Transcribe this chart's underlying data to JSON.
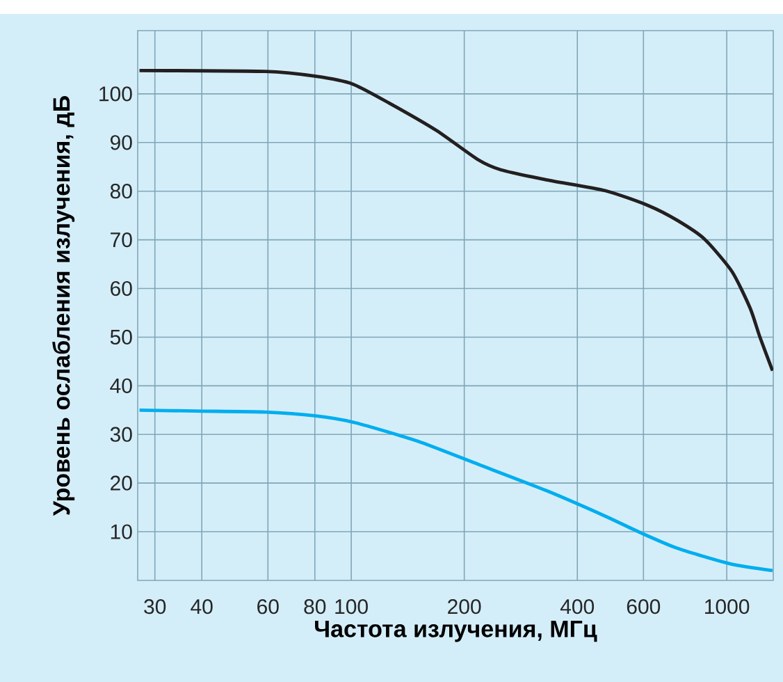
{
  "chart_data": {
    "type": "line",
    "xlabel": "Частота излучения, МГц",
    "ylabel": "Уровень ослабления излучения, дБ",
    "log": "x",
    "grid": true,
    "xlim": [
      27,
      1330
    ],
    "ylim": [
      0,
      113
    ],
    "xticks": [
      30,
      40,
      60,
      80,
      100,
      200,
      400,
      600,
      1000
    ],
    "yticks": [
      10,
      20,
      30,
      40,
      50,
      60,
      70,
      80,
      90,
      100
    ],
    "series": [
      {
        "color": "#231f20",
        "x": [
          27.3,
          59,
          80.6,
          101,
          126.9,
          168.4,
          217.3,
          250.2,
          332.3,
          474.8,
          620,
          738.5,
          871,
          1032,
          1155,
          1223,
          1324
        ],
        "values": [
          104.8,
          104.6,
          103.6,
          102.0,
          98.0,
          92.5,
          86.5,
          84.4,
          82.3,
          80.1,
          77.0,
          74.0,
          70.2,
          63.5,
          55.9,
          50.2,
          43.1
        ]
      },
      {
        "color": "#00aeef",
        "x": [
          27.3,
          38.6,
          59,
          80.6,
          102.6,
          150.4,
          218.6,
          332,
          474.8,
          585.6,
          738.5,
          1020,
          1324
        ],
        "values": [
          35.0,
          34.8,
          34.6,
          33.8,
          32.4,
          28.6,
          23.8,
          18.4,
          13.2,
          9.9,
          6.6,
          3.4,
          2.0
        ]
      }
    ]
  }
}
